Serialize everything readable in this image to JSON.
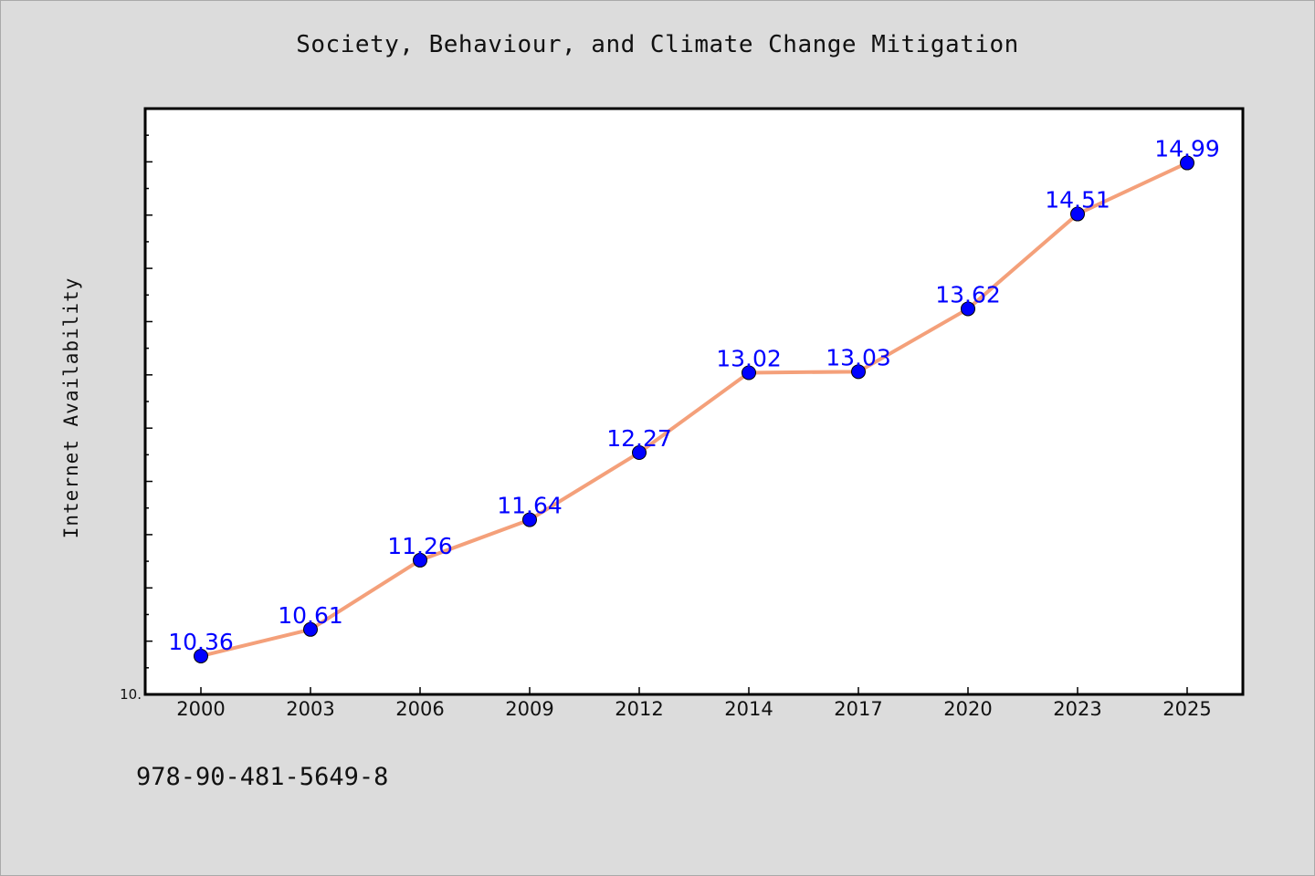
{
  "chart_data": {
    "type": "line",
    "title": "Society, Behaviour, and Climate Change Mitigation",
    "xlabel": "",
    "ylabel": "Internet Availability",
    "categories": [
      "2000",
      "2003",
      "2006",
      "2009",
      "2012",
      "2014",
      "2017",
      "2020",
      "2023",
      "2025"
    ],
    "series": [
      {
        "values": [
          10.36,
          10.61,
          11.26,
          11.64,
          12.27,
          13.02,
          13.03,
          13.62,
          14.51,
          14.99
        ]
      }
    ],
    "data_labels": [
      "10.36",
      "10.61",
      "11.26",
      "11.64",
      "12.27",
      "13.02",
      "13.03",
      "13.62",
      "14.51",
      "14.99"
    ],
    "ylim": [
      10.0,
      15.5
    ],
    "yticks": [
      10.0
    ],
    "ytick_labels": [
      "10."
    ],
    "grid": false,
    "legend": "none",
    "colors": {
      "line": "#f4a07a",
      "marker": "#0000ff",
      "label": "#0000ff",
      "background": "#dcdcdc",
      "plot_bg": "#ffffff"
    }
  },
  "footer": {
    "note": "978-90-481-5649-8"
  }
}
